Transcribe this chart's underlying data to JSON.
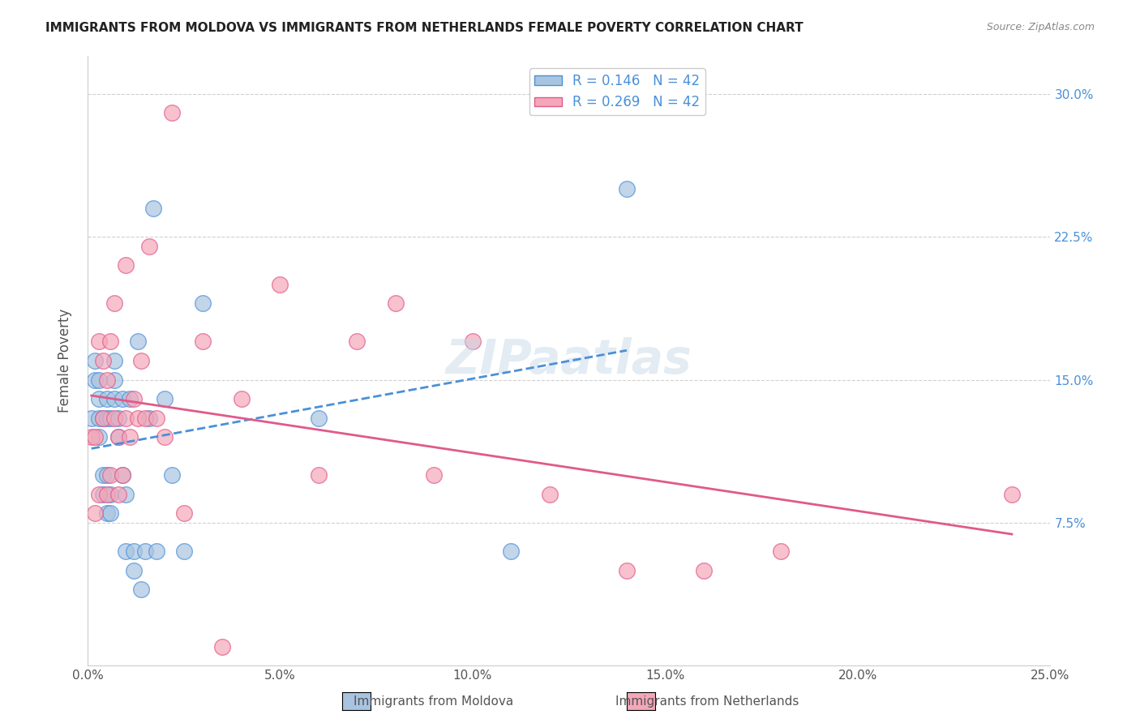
{
  "title": "IMMIGRANTS FROM MOLDOVA VS IMMIGRANTS FROM NETHERLANDS FEMALE POVERTY CORRELATION CHART",
  "source": "Source: ZipAtlas.com",
  "xlabel_bottom": "",
  "ylabel": "Female Poverty",
  "x_label_bottom_left": "0.0%",
  "x_label_bottom_right": "25.0%",
  "y_ticks": [
    "7.5%",
    "15.0%",
    "22.5%",
    "30.0%"
  ],
  "legend_r1": "R = 0.146   N = 42",
  "legend_r2": "R = 0.269   N = 42",
  "legend_label1": "Immigrants from Moldova",
  "legend_label2": "Immigrants from Netherlands",
  "color_moldova": "#a8c4e0",
  "color_netherlands": "#f4a7b9",
  "color_moldova_dark": "#4a90d9",
  "color_netherlands_dark": "#e05a8a",
  "color_trendline_moldova": "#4a90d9",
  "color_trendline_netherlands": "#e05a8a",
  "watermark": "ZIPaatlas",
  "xlim": [
    0.0,
    0.25
  ],
  "ylim": [
    0.0,
    0.32
  ],
  "moldova_x": [
    0.001,
    0.002,
    0.002,
    0.003,
    0.003,
    0.003,
    0.003,
    0.004,
    0.004,
    0.004,
    0.005,
    0.005,
    0.005,
    0.005,
    0.006,
    0.006,
    0.006,
    0.007,
    0.007,
    0.007,
    0.008,
    0.008,
    0.009,
    0.009,
    0.01,
    0.01,
    0.011,
    0.012,
    0.012,
    0.013,
    0.014,
    0.015,
    0.016,
    0.017,
    0.018,
    0.02,
    0.022,
    0.025,
    0.03,
    0.06,
    0.11,
    0.14
  ],
  "moldova_y": [
    0.13,
    0.15,
    0.16,
    0.12,
    0.13,
    0.14,
    0.15,
    0.09,
    0.1,
    0.13,
    0.08,
    0.1,
    0.13,
    0.14,
    0.08,
    0.09,
    0.13,
    0.14,
    0.15,
    0.16,
    0.12,
    0.13,
    0.14,
    0.1,
    0.09,
    0.06,
    0.14,
    0.05,
    0.06,
    0.17,
    0.04,
    0.06,
    0.13,
    0.24,
    0.06,
    0.14,
    0.1,
    0.06,
    0.19,
    0.13,
    0.06,
    0.25
  ],
  "netherlands_x": [
    0.001,
    0.002,
    0.002,
    0.003,
    0.003,
    0.004,
    0.004,
    0.005,
    0.005,
    0.006,
    0.006,
    0.007,
    0.007,
    0.008,
    0.008,
    0.009,
    0.01,
    0.01,
    0.011,
    0.012,
    0.013,
    0.014,
    0.015,
    0.016,
    0.018,
    0.02,
    0.022,
    0.025,
    0.03,
    0.035,
    0.04,
    0.05,
    0.06,
    0.07,
    0.08,
    0.09,
    0.1,
    0.12,
    0.14,
    0.16,
    0.18,
    0.24
  ],
  "netherlands_y": [
    0.12,
    0.08,
    0.12,
    0.09,
    0.17,
    0.13,
    0.16,
    0.09,
    0.15,
    0.1,
    0.17,
    0.13,
    0.19,
    0.09,
    0.12,
    0.1,
    0.21,
    0.13,
    0.12,
    0.14,
    0.13,
    0.16,
    0.13,
    0.22,
    0.13,
    0.12,
    0.29,
    0.08,
    0.17,
    0.01,
    0.14,
    0.2,
    0.1,
    0.17,
    0.19,
    0.1,
    0.17,
    0.09,
    0.05,
    0.05,
    0.06,
    0.09
  ],
  "background_color": "#ffffff",
  "grid_color": "#d0d0d0"
}
